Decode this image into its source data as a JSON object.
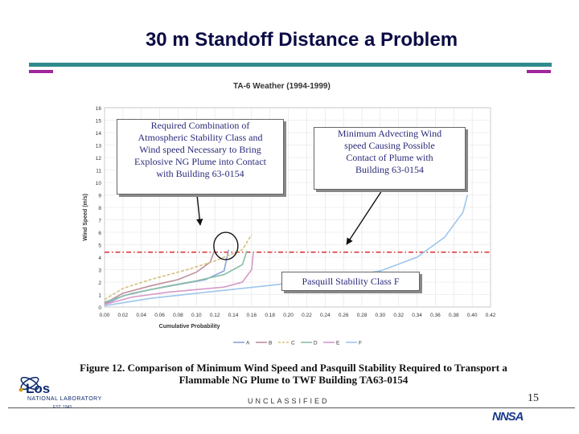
{
  "slide": {
    "title": "30 m Standoff Distance a Problem",
    "footer_classification": "UNCLASSIFIED",
    "page_number": "15",
    "logo_word": "Los",
    "logo_sub": "NATIONAL LABORATORY",
    "logo_est": "EST. 1943",
    "nnsa": "NNSA"
  },
  "colors": {
    "title": "#0b0b45",
    "teal_rule": "#2f8a8c",
    "purple_rule": "#a0269c",
    "threshold_line": "#d41c1c"
  },
  "callouts": {
    "required": [
      "Required Combination of",
      "Atmospheric Stability Class and",
      "Wind speed Necessary to Bring",
      "Explosive NG Plume into Contact",
      "with Building 63-0154"
    ],
    "minimum": [
      "Minimum Advecting Wind",
      "speed Causing Possible",
      "Contact of Plume with",
      "Building 63-0154"
    ],
    "pasquill": "Pasquill Stability Class F"
  },
  "caption": {
    "line1": "Figure 12. Comparison of Minimum Wind Speed and Pasquill Stability Required to Transport a",
    "line2": "Flammable NG Plume to TWF Building TA63-0154"
  },
  "chart_data": {
    "type": "line",
    "title": "TA-6 Weather (1994-1999)",
    "xlabel": "Cumulative Probability",
    "ylabel": "Wind Speed (m/s)",
    "xlim": [
      0,
      0.42
    ],
    "ylim": [
      0,
      16
    ],
    "xticks": [
      "0.00",
      "0.02",
      "0.04",
      "0.06",
      "0.08",
      "0.10",
      "0.12",
      "0.14",
      "0.16",
      "0.18",
      "0.20",
      "0.22",
      "0.24",
      "0.26",
      "0.28",
      "0.30",
      "0.32",
      "0.34",
      "0.36",
      "0.38",
      "0.40",
      "0.42"
    ],
    "yticks": [
      "0",
      "1",
      "2",
      "3",
      "4",
      "5",
      "6",
      "7",
      "8",
      "9",
      "10",
      "11",
      "12",
      "13",
      "14",
      "15",
      "16"
    ],
    "grid": true,
    "legend_position": "bottom",
    "threshold_wind_speed": 4.4,
    "series": [
      {
        "name": "A",
        "color": "#8ea2d8",
        "dash": false,
        "points": [
          [
            0,
            0.2
          ],
          [
            0.02,
            0.9
          ],
          [
            0.05,
            1.4
          ],
          [
            0.08,
            1.8
          ],
          [
            0.11,
            2.2
          ],
          [
            0.13,
            2.9
          ],
          [
            0.135,
            4.6
          ]
        ]
      },
      {
        "name": "B",
        "color": "#c08f9b",
        "dash": false,
        "points": [
          [
            0,
            0.3
          ],
          [
            0.02,
            1.1
          ],
          [
            0.05,
            1.7
          ],
          [
            0.08,
            2.2
          ],
          [
            0.1,
            2.8
          ],
          [
            0.115,
            3.6
          ],
          [
            0.12,
            4.6
          ]
        ]
      },
      {
        "name": "C",
        "color": "#d6c080",
        "dash": true,
        "points": [
          [
            0,
            0.6
          ],
          [
            0.02,
            1.5
          ],
          [
            0.05,
            2.2
          ],
          [
            0.09,
            3.0
          ],
          [
            0.12,
            3.7
          ],
          [
            0.15,
            4.6
          ],
          [
            0.16,
            5.8
          ]
        ]
      },
      {
        "name": "D",
        "color": "#8abfa6",
        "dash": false,
        "points": [
          [
            0,
            0.4
          ],
          [
            0.03,
            1.1
          ],
          [
            0.07,
            1.7
          ],
          [
            0.1,
            2.1
          ],
          [
            0.13,
            2.6
          ],
          [
            0.15,
            3.4
          ],
          [
            0.155,
            4.5
          ]
        ]
      },
      {
        "name": "E",
        "color": "#d59ac8",
        "dash": false,
        "points": [
          [
            0,
            0.2
          ],
          [
            0.03,
            0.8
          ],
          [
            0.07,
            1.2
          ],
          [
            0.1,
            1.4
          ],
          [
            0.13,
            1.6
          ],
          [
            0.15,
            2.0
          ],
          [
            0.16,
            3.0
          ],
          [
            0.162,
            4.4
          ]
        ]
      },
      {
        "name": "F",
        "color": "#9ec6ec",
        "dash": false,
        "points": [
          [
            0,
            0.1
          ],
          [
            0.05,
            0.7
          ],
          [
            0.1,
            1.1
          ],
          [
            0.15,
            1.5
          ],
          [
            0.2,
            1.9
          ],
          [
            0.25,
            2.3
          ],
          [
            0.3,
            2.9
          ],
          [
            0.34,
            4.0
          ],
          [
            0.37,
            5.6
          ],
          [
            0.39,
            7.6
          ],
          [
            0.395,
            9.0
          ]
        ]
      }
    ]
  }
}
